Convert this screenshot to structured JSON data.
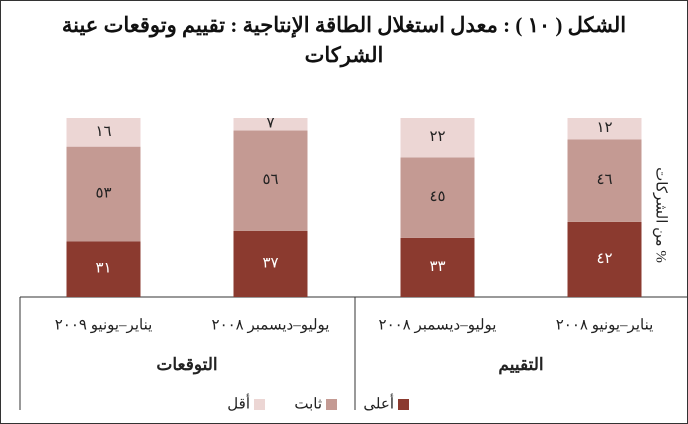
{
  "chart_data": {
    "type": "stacked_bar",
    "title": "الشكل ( ١٠ ) : معدل استغلال الطاقة الإنتاجية : تقييم وتوقعات عينة الشركات",
    "y_label": "% من الشركات",
    "categories": [
      "يناير–يونيو ٢٠٠٨",
      "يوليو–ديسمبر ٢٠٠٨",
      "يوليو–ديسمبر ٢٠٠٨",
      "يناير–يونيو ٢٠٠٩"
    ],
    "groups": [
      "التقييم",
      "التوقعات"
    ],
    "series": [
      {
        "name": "أعلى",
        "color": "#8b3a2f",
        "values": [
          42,
          33,
          37,
          31
        ],
        "value_labels": [
          "٤٢",
          "٣٣",
          "٣٧",
          "٣١"
        ]
      },
      {
        "name": "ثابت",
        "color": "#c49a93",
        "values": [
          46,
          45,
          56,
          53
        ],
        "value_labels": [
          "٤٦",
          "٤٥",
          "٥٦",
          "٥٣"
        ]
      },
      {
        "name": "أقل",
        "color": "#ecd6d4",
        "values": [
          12,
          22,
          7,
          16
        ],
        "value_labels": [
          "١٢",
          "٢٢",
          "٧",
          "١٦"
        ]
      }
    ],
    "ylim": [
      0,
      100
    ]
  }
}
